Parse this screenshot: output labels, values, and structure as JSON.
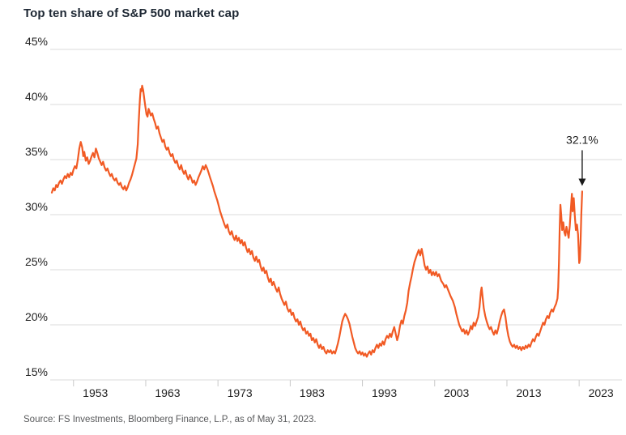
{
  "header": {
    "title": "Top ten share of S&P 500 market cap"
  },
  "footer": {
    "source": "Source: FS Investments, Bloomberg Finance, L.P., as of May 31, 2023."
  },
  "colors": {
    "line": "#F15A24",
    "grid": "#DBDBDB",
    "axis": "#D2D2D2",
    "tick": "#C9C9C9",
    "title_text": "#1D2733",
    "axis_text": "#222222",
    "source_text": "#58595B",
    "arrow": "#1A1A1A"
  },
  "chart_data": {
    "type": "line",
    "title": "Top ten share of S&P 500 market cap",
    "xlabel": "",
    "ylabel": "",
    "ylim": [
      15,
      45
    ],
    "yticks": [
      15,
      20,
      25,
      30,
      35,
      40,
      45
    ],
    "ytick_suffix": "%",
    "xticks": [
      1953,
      1963,
      1973,
      1983,
      1993,
      2003,
      2013,
      2023
    ],
    "x_range": [
      1950,
      2023.42
    ],
    "grid": "horizontal",
    "legend": "none",
    "annotation": {
      "label": "32.1%",
      "year": 2023.42,
      "value": 32.1
    },
    "points": [
      [
        1950.0,
        32.0
      ],
      [
        1950.2,
        32.4
      ],
      [
        1950.4,
        32.2
      ],
      [
        1950.6,
        32.7
      ],
      [
        1950.8,
        32.5
      ],
      [
        1951.0,
        32.9
      ],
      [
        1951.2,
        33.1
      ],
      [
        1951.4,
        32.8
      ],
      [
        1951.6,
        33.2
      ],
      [
        1951.8,
        33.5
      ],
      [
        1952.0,
        33.3
      ],
      [
        1952.2,
        33.7
      ],
      [
        1952.4,
        33.4
      ],
      [
        1952.6,
        33.8
      ],
      [
        1952.8,
        33.6
      ],
      [
        1953.0,
        34.1
      ],
      [
        1953.2,
        34.4
      ],
      [
        1953.4,
        34.2
      ],
      [
        1953.6,
        35.0
      ],
      [
        1953.8,
        36.0
      ],
      [
        1954.0,
        36.6
      ],
      [
        1954.2,
        36.1
      ],
      [
        1954.35,
        35.3
      ],
      [
        1954.5,
        35.7
      ],
      [
        1954.7,
        34.9
      ],
      [
        1954.9,
        35.2
      ],
      [
        1955.1,
        34.6
      ],
      [
        1955.3,
        34.9
      ],
      [
        1955.5,
        35.3
      ],
      [
        1955.7,
        35.6
      ],
      [
        1955.9,
        35.2
      ],
      [
        1956.1,
        36.0
      ],
      [
        1956.3,
        35.6
      ],
      [
        1956.5,
        35.1
      ],
      [
        1956.7,
        34.8
      ],
      [
        1956.9,
        34.5
      ],
      [
        1957.1,
        34.8
      ],
      [
        1957.3,
        34.3
      ],
      [
        1957.5,
        34.0
      ],
      [
        1957.7,
        34.2
      ],
      [
        1957.9,
        33.8
      ],
      [
        1958.1,
        33.5
      ],
      [
        1958.3,
        33.7
      ],
      [
        1958.5,
        33.3
      ],
      [
        1958.7,
        33.1
      ],
      [
        1958.9,
        33.3
      ],
      [
        1959.1,
        32.9
      ],
      [
        1959.3,
        32.7
      ],
      [
        1959.5,
        32.9
      ],
      [
        1959.7,
        32.5
      ],
      [
        1959.9,
        32.3
      ],
      [
        1960.1,
        32.6
      ],
      [
        1960.3,
        32.2
      ],
      [
        1960.5,
        32.5
      ],
      [
        1960.7,
        32.9
      ],
      [
        1960.9,
        33.2
      ],
      [
        1961.1,
        33.6
      ],
      [
        1961.3,
        34.1
      ],
      [
        1961.5,
        34.6
      ],
      [
        1961.7,
        35.1
      ],
      [
        1961.9,
        36.4
      ],
      [
        1962.0,
        38.0
      ],
      [
        1962.1,
        39.3
      ],
      [
        1962.2,
        40.5
      ],
      [
        1962.3,
        41.4
      ],
      [
        1962.4,
        41.2
      ],
      [
        1962.5,
        41.7
      ],
      [
        1962.65,
        41.3
      ],
      [
        1962.8,
        40.5
      ],
      [
        1962.95,
        39.8
      ],
      [
        1963.1,
        39.1
      ],
      [
        1963.25,
        38.9
      ],
      [
        1963.4,
        39.6
      ],
      [
        1963.55,
        39.3
      ],
      [
        1963.7,
        39.0
      ],
      [
        1963.9,
        39.2
      ],
      [
        1964.1,
        38.7
      ],
      [
        1964.3,
        38.3
      ],
      [
        1964.5,
        37.8
      ],
      [
        1964.7,
        38.0
      ],
      [
        1964.9,
        37.4
      ],
      [
        1965.1,
        37.0
      ],
      [
        1965.3,
        36.6
      ],
      [
        1965.5,
        36.8
      ],
      [
        1965.7,
        36.2
      ],
      [
        1965.9,
        35.9
      ],
      [
        1966.1,
        36.1
      ],
      [
        1966.3,
        35.6
      ],
      [
        1966.5,
        35.3
      ],
      [
        1966.7,
        35.5
      ],
      [
        1966.9,
        35.0
      ],
      [
        1967.1,
        34.7
      ],
      [
        1967.3,
        34.9
      ],
      [
        1967.5,
        34.4
      ],
      [
        1967.7,
        34.1
      ],
      [
        1967.9,
        34.5
      ],
      [
        1968.1,
        34.0
      ],
      [
        1968.3,
        33.7
      ],
      [
        1968.5,
        34.0
      ],
      [
        1968.7,
        33.5
      ],
      [
        1968.9,
        33.2
      ],
      [
        1969.1,
        33.6
      ],
      [
        1969.3,
        33.3
      ],
      [
        1969.5,
        32.9
      ],
      [
        1969.7,
        33.1
      ],
      [
        1969.9,
        32.7
      ],
      [
        1970.1,
        33.0
      ],
      [
        1970.3,
        33.4
      ],
      [
        1970.5,
        33.7
      ],
      [
        1970.7,
        34.0
      ],
      [
        1970.9,
        34.4
      ],
      [
        1971.1,
        34.1
      ],
      [
        1971.3,
        34.5
      ],
      [
        1971.5,
        34.2
      ],
      [
        1971.7,
        33.8
      ],
      [
        1971.9,
        33.4
      ],
      [
        1972.1,
        33.0
      ],
      [
        1972.3,
        32.6
      ],
      [
        1972.5,
        32.1
      ],
      [
        1972.7,
        31.7
      ],
      [
        1972.9,
        31.3
      ],
      [
        1973.1,
        30.8
      ],
      [
        1973.3,
        30.3
      ],
      [
        1973.5,
        29.9
      ],
      [
        1973.7,
        29.5
      ],
      [
        1973.9,
        29.1
      ],
      [
        1974.1,
        28.8
      ],
      [
        1974.3,
        29.1
      ],
      [
        1974.5,
        28.5
      ],
      [
        1974.7,
        28.2
      ],
      [
        1974.9,
        28.5
      ],
      [
        1975.1,
        28.0
      ],
      [
        1975.3,
        27.7
      ],
      [
        1975.5,
        28.1
      ],
      [
        1975.7,
        27.6
      ],
      [
        1975.9,
        27.9
      ],
      [
        1976.1,
        27.4
      ],
      [
        1976.3,
        27.7
      ],
      [
        1976.5,
        27.2
      ],
      [
        1976.7,
        27.5
      ],
      [
        1976.9,
        27.0
      ],
      [
        1977.1,
        26.6
      ],
      [
        1977.3,
        26.9
      ],
      [
        1977.5,
        26.4
      ],
      [
        1977.7,
        26.7
      ],
      [
        1977.9,
        26.1
      ],
      [
        1978.1,
        25.8
      ],
      [
        1978.3,
        26.2
      ],
      [
        1978.5,
        25.7
      ],
      [
        1978.7,
        25.9
      ],
      [
        1978.9,
        25.3
      ],
      [
        1979.1,
        24.9
      ],
      [
        1979.3,
        25.2
      ],
      [
        1979.5,
        24.7
      ],
      [
        1979.7,
        24.9
      ],
      [
        1979.9,
        24.3
      ],
      [
        1980.1,
        23.9
      ],
      [
        1980.3,
        24.2
      ],
      [
        1980.5,
        23.6
      ],
      [
        1980.7,
        23.9
      ],
      [
        1981.0,
        23.3
      ],
      [
        1981.2,
        23.0
      ],
      [
        1981.4,
        23.4
      ],
      [
        1981.6,
        22.8
      ],
      [
        1981.8,
        22.4
      ],
      [
        1982.0,
        22.1
      ],
      [
        1982.2,
        21.8
      ],
      [
        1982.4,
        22.1
      ],
      [
        1982.6,
        21.5
      ],
      [
        1982.8,
        21.2
      ],
      [
        1983.0,
        21.4
      ],
      [
        1983.2,
        20.9
      ],
      [
        1983.4,
        21.1
      ],
      [
        1983.6,
        20.6
      ],
      [
        1983.8,
        20.3
      ],
      [
        1984.0,
        20.5
      ],
      [
        1984.2,
        20.0
      ],
      [
        1984.4,
        20.3
      ],
      [
        1984.6,
        19.8
      ],
      [
        1984.8,
        19.5
      ],
      [
        1985.0,
        19.7
      ],
      [
        1985.2,
        19.2
      ],
      [
        1985.4,
        19.4
      ],
      [
        1985.6,
        19.0
      ],
      [
        1985.8,
        19.2
      ],
      [
        1986.0,
        18.6
      ],
      [
        1986.2,
        18.8
      ],
      [
        1986.4,
        18.4
      ],
      [
        1986.6,
        18.7
      ],
      [
        1986.8,
        18.2
      ],
      [
        1987.0,
        17.9
      ],
      [
        1987.2,
        18.2
      ],
      [
        1987.4,
        17.8
      ],
      [
        1987.6,
        18.0
      ],
      [
        1987.8,
        17.6
      ],
      [
        1988.0,
        17.4
      ],
      [
        1988.2,
        17.7
      ],
      [
        1988.4,
        17.5
      ],
      [
        1988.6,
        17.7
      ],
      [
        1988.8,
        17.4
      ],
      [
        1989.0,
        17.6
      ],
      [
        1989.2,
        17.4
      ],
      [
        1989.4,
        17.8
      ],
      [
        1989.6,
        18.3
      ],
      [
        1989.8,
        18.9
      ],
      [
        1990.0,
        19.6
      ],
      [
        1990.2,
        20.3
      ],
      [
        1990.4,
        20.7
      ],
      [
        1990.6,
        21.0
      ],
      [
        1990.8,
        20.8
      ],
      [
        1991.0,
        20.5
      ],
      [
        1991.2,
        20.1
      ],
      [
        1991.4,
        19.5
      ],
      [
        1991.6,
        18.9
      ],
      [
        1991.8,
        18.4
      ],
      [
        1992.0,
        17.9
      ],
      [
        1992.2,
        17.6
      ],
      [
        1992.4,
        17.4
      ],
      [
        1992.6,
        17.6
      ],
      [
        1992.8,
        17.3
      ],
      [
        1993.0,
        17.5
      ],
      [
        1993.2,
        17.2
      ],
      [
        1993.4,
        17.4
      ],
      [
        1993.6,
        17.1
      ],
      [
        1993.8,
        17.4
      ],
      [
        1994.0,
        17.6
      ],
      [
        1994.2,
        17.3
      ],
      [
        1994.4,
        17.7
      ],
      [
        1994.6,
        17.5
      ],
      [
        1994.8,
        17.9
      ],
      [
        1995.0,
        18.2
      ],
      [
        1995.2,
        17.9
      ],
      [
        1995.4,
        18.3
      ],
      [
        1995.6,
        18.1
      ],
      [
        1995.8,
        18.5
      ],
      [
        1996.0,
        18.2
      ],
      [
        1996.2,
        18.7
      ],
      [
        1996.4,
        19.0
      ],
      [
        1996.6,
        18.8
      ],
      [
        1996.8,
        19.2
      ],
      [
        1997.0,
        18.9
      ],
      [
        1997.2,
        19.4
      ],
      [
        1997.4,
        19.8
      ],
      [
        1997.6,
        19.2
      ],
      [
        1997.8,
        18.6
      ],
      [
        1998.0,
        19.1
      ],
      [
        1998.2,
        19.9
      ],
      [
        1998.4,
        20.4
      ],
      [
        1998.6,
        20.1
      ],
      [
        1998.8,
        20.8
      ],
      [
        1999.0,
        21.3
      ],
      [
        1999.2,
        22.0
      ],
      [
        1999.4,
        23.1
      ],
      [
        1999.6,
        23.8
      ],
      [
        1999.8,
        24.4
      ],
      [
        2000.0,
        25.1
      ],
      [
        2000.2,
        25.7
      ],
      [
        2000.5,
        26.3
      ],
      [
        2000.8,
        26.8
      ],
      [
        2001.0,
        26.3
      ],
      [
        2001.2,
        26.9
      ],
      [
        2001.4,
        26.2
      ],
      [
        2001.6,
        25.4
      ],
      [
        2001.8,
        25.0
      ],
      [
        2002.0,
        25.3
      ],
      [
        2002.2,
        24.7
      ],
      [
        2002.4,
        25.0
      ],
      [
        2002.6,
        24.5
      ],
      [
        2002.8,
        24.8
      ],
      [
        2003.0,
        24.5
      ],
      [
        2003.2,
        24.8
      ],
      [
        2003.4,
        24.4
      ],
      [
        2003.6,
        24.6
      ],
      [
        2003.9,
        24.0
      ],
      [
        2004.2,
        23.7
      ],
      [
        2004.4,
        23.4
      ],
      [
        2004.6,
        23.6
      ],
      [
        2004.9,
        23.1
      ],
      [
        2005.2,
        22.6
      ],
      [
        2005.5,
        22.2
      ],
      [
        2005.8,
        21.6
      ],
      [
        2006.0,
        21.0
      ],
      [
        2006.2,
        20.5
      ],
      [
        2006.4,
        20.0
      ],
      [
        2006.6,
        19.7
      ],
      [
        2006.8,
        19.4
      ],
      [
        2007.0,
        19.6
      ],
      [
        2007.2,
        19.2
      ],
      [
        2007.4,
        19.5
      ],
      [
        2007.6,
        19.1
      ],
      [
        2007.8,
        19.4
      ],
      [
        2008.0,
        19.9
      ],
      [
        2008.2,
        19.6
      ],
      [
        2008.4,
        20.2
      ],
      [
        2008.6,
        19.9
      ],
      [
        2008.8,
        20.3
      ],
      [
        2009.0,
        20.7
      ],
      [
        2009.2,
        21.6
      ],
      [
        2009.4,
        23.0
      ],
      [
        2009.5,
        23.4
      ],
      [
        2009.65,
        22.4
      ],
      [
        2009.8,
        21.5
      ],
      [
        2010.0,
        20.8
      ],
      [
        2010.2,
        20.3
      ],
      [
        2010.4,
        19.9
      ],
      [
        2010.6,
        19.6
      ],
      [
        2010.8,
        19.8
      ],
      [
        2011.0,
        19.4
      ],
      [
        2011.2,
        19.1
      ],
      [
        2011.4,
        19.5
      ],
      [
        2011.6,
        19.2
      ],
      [
        2011.8,
        19.7
      ],
      [
        2012.0,
        20.3
      ],
      [
        2012.2,
        20.8
      ],
      [
        2012.4,
        21.2
      ],
      [
        2012.6,
        21.4
      ],
      [
        2012.8,
        20.7
      ],
      [
        2013.0,
        19.7
      ],
      [
        2013.2,
        19.0
      ],
      [
        2013.4,
        18.5
      ],
      [
        2013.6,
        18.2
      ],
      [
        2013.8,
        18.0
      ],
      [
        2014.0,
        18.2
      ],
      [
        2014.2,
        17.9
      ],
      [
        2014.4,
        18.1
      ],
      [
        2014.6,
        17.8
      ],
      [
        2014.8,
        18.0
      ],
      [
        2015.0,
        17.7
      ],
      [
        2015.2,
        18.0
      ],
      [
        2015.4,
        17.8
      ],
      [
        2015.6,
        18.1
      ],
      [
        2015.8,
        17.9
      ],
      [
        2016.0,
        18.2
      ],
      [
        2016.2,
        18.0
      ],
      [
        2016.4,
        18.4
      ],
      [
        2016.6,
        18.7
      ],
      [
        2016.8,
        18.5
      ],
      [
        2017.0,
        18.9
      ],
      [
        2017.2,
        19.2
      ],
      [
        2017.4,
        19.0
      ],
      [
        2017.6,
        19.4
      ],
      [
        2017.8,
        19.8
      ],
      [
        2018.0,
        20.2
      ],
      [
        2018.2,
        20.0
      ],
      [
        2018.4,
        20.5
      ],
      [
        2018.6,
        20.8
      ],
      [
        2018.8,
        20.6
      ],
      [
        2019.0,
        21.1
      ],
      [
        2019.2,
        21.4
      ],
      [
        2019.4,
        21.2
      ],
      [
        2019.6,
        21.6
      ],
      [
        2019.8,
        21.9
      ],
      [
        2020.0,
        22.4
      ],
      [
        2020.1,
        23.4
      ],
      [
        2020.2,
        25.6
      ],
      [
        2020.3,
        28.7
      ],
      [
        2020.4,
        30.9
      ],
      [
        2020.5,
        30.1
      ],
      [
        2020.65,
        28.6
      ],
      [
        2020.8,
        29.3
      ],
      [
        2020.95,
        28.4
      ],
      [
        2021.1,
        28.1
      ],
      [
        2021.25,
        28.9
      ],
      [
        2021.4,
        28.4
      ],
      [
        2021.55,
        27.9
      ],
      [
        2021.7,
        29.0
      ],
      [
        2021.85,
        30.5
      ],
      [
        2022.0,
        31.9
      ],
      [
        2022.1,
        30.3
      ],
      [
        2022.25,
        31.5
      ],
      [
        2022.4,
        29.9
      ],
      [
        2022.55,
        28.6
      ],
      [
        2022.7,
        29.1
      ],
      [
        2022.85,
        28.2
      ],
      [
        2023.0,
        25.6
      ],
      [
        2023.1,
        25.9
      ],
      [
        2023.2,
        27.5
      ],
      [
        2023.3,
        30.0
      ],
      [
        2023.42,
        32.1
      ]
    ]
  }
}
